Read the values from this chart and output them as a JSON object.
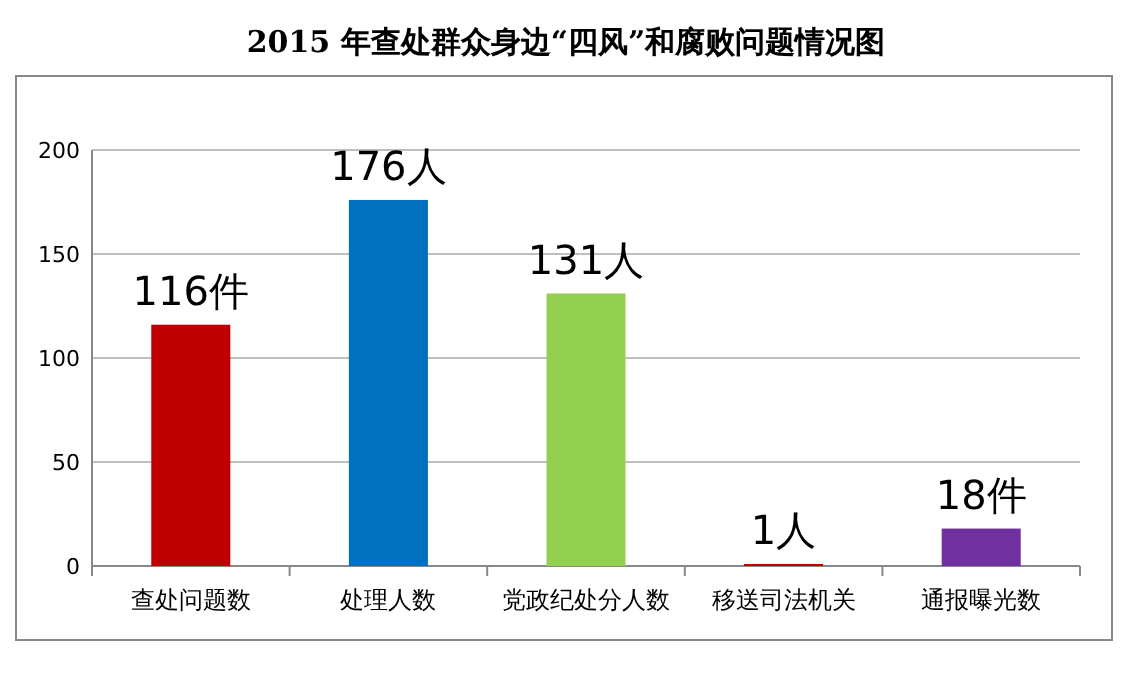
{
  "chart_data": {
    "type": "bar",
    "title": "2015 年查处群众身边“四风”和腐败问题情况图",
    "categories": [
      "查处问题数",
      "处理人数",
      "党政纪处分人数",
      "移送司法机关",
      "通报曝光数"
    ],
    "values": [
      116,
      176,
      131,
      1,
      18
    ],
    "colors": [
      "#c00000",
      "#0070c0",
      "#92d050",
      "#c00000",
      "#7030a0"
    ],
    "value_labels": [
      "116件",
      "176人",
      "131人",
      "1人",
      "18件"
    ],
    "ylim": [
      0,
      200
    ],
    "yticks": [
      0,
      50,
      100,
      150,
      200
    ],
    "grid": "y"
  }
}
